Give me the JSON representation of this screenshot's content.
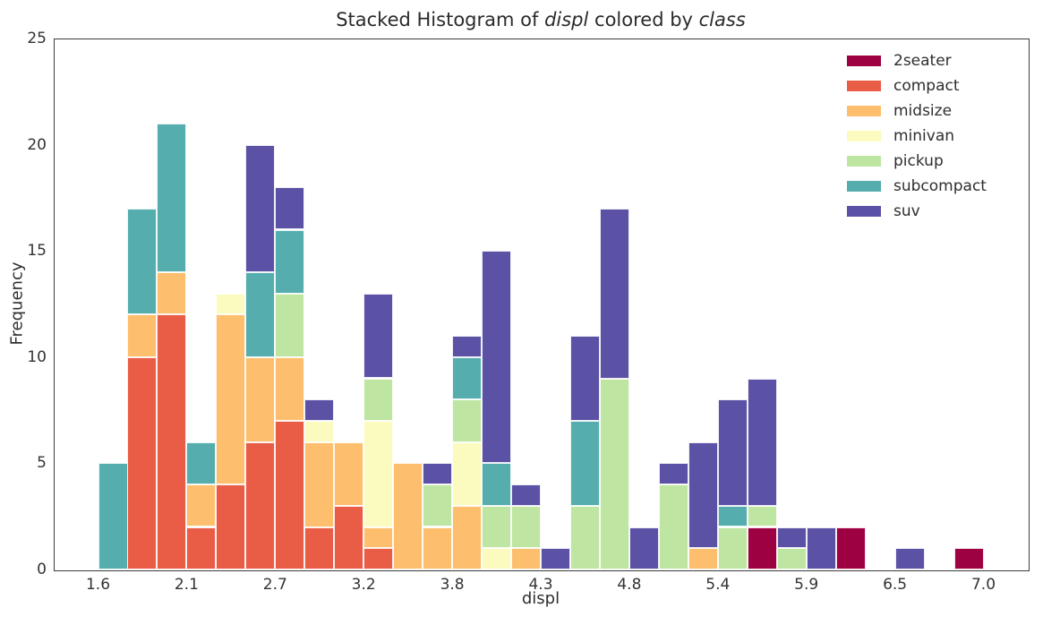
{
  "title": {
    "prefix": "Stacked Histogram of ",
    "var1": "displ",
    "middle": " colored by ",
    "var2": "class"
  },
  "chart_data": {
    "type": "bar",
    "subtype": "stacked-histogram",
    "title": "Stacked Histogram of displ colored by class",
    "xlabel": "displ",
    "ylabel": "Frequency",
    "xlim": [
      1.33,
      7.27
    ],
    "ylim": [
      0,
      25
    ],
    "grid": false,
    "legend_position": "upper right",
    "bin_start": 1.6,
    "bin_width": 0.18,
    "bin_count": 30,
    "x_tick_values": [
      1.6,
      2.14,
      2.68,
      3.22,
      3.76,
      4.3,
      4.84,
      5.38,
      5.92,
      6.46,
      7.0
    ],
    "x_tick_labels": [
      "1.6",
      "2.1",
      "2.7",
      "3.2",
      "3.8",
      "4.3",
      "4.8",
      "5.4",
      "5.9",
      "6.5",
      "7.0"
    ],
    "y_tick_values": [
      0,
      5,
      10,
      15,
      20,
      25
    ],
    "y_tick_labels": [
      "0",
      "5",
      "10",
      "15",
      "20",
      "25"
    ],
    "series": [
      {
        "name": "2seater",
        "color": "#9e0142",
        "values": [
          0,
          0,
          0,
          0,
          0,
          0,
          0,
          0,
          0,
          0,
          0,
          0,
          0,
          0,
          0,
          0,
          0,
          0,
          0,
          0,
          0,
          0,
          2,
          0,
          0,
          2,
          0,
          0,
          0,
          1
        ]
      },
      {
        "name": "compact",
        "color": "#e95d47",
        "values": [
          0,
          10,
          12,
          2,
          4,
          6,
          7,
          2,
          3,
          1,
          0,
          0,
          0,
          0,
          0,
          0,
          0,
          0,
          0,
          0,
          0,
          0,
          0,
          0,
          0,
          0,
          0,
          0,
          0,
          0
        ]
      },
      {
        "name": "midsize",
        "color": "#fdbe6e",
        "values": [
          0,
          2,
          2,
          2,
          8,
          4,
          3,
          4,
          3,
          1,
          5,
          2,
          3,
          0,
          1,
          0,
          0,
          0,
          0,
          0,
          1,
          0,
          0,
          0,
          0,
          0,
          0,
          0,
          0,
          0
        ]
      },
      {
        "name": "minivan",
        "color": "#fbfbbf",
        "values": [
          0,
          0,
          0,
          0,
          1,
          0,
          0,
          1,
          0,
          5,
          0,
          0,
          3,
          1,
          0,
          0,
          0,
          0,
          0,
          0,
          0,
          0,
          0,
          0,
          0,
          0,
          0,
          0,
          0,
          0
        ]
      },
      {
        "name": "pickup",
        "color": "#bee5a2",
        "values": [
          0,
          0,
          0,
          0,
          0,
          0,
          3,
          0,
          0,
          2,
          0,
          2,
          2,
          2,
          2,
          0,
          3,
          9,
          0,
          4,
          0,
          2,
          1,
          1,
          0,
          0,
          0,
          0,
          0,
          0
        ]
      },
      {
        "name": "subcompact",
        "color": "#55aead",
        "values": [
          5,
          5,
          7,
          2,
          0,
          4,
          3,
          0,
          0,
          0,
          0,
          0,
          2,
          2,
          0,
          0,
          4,
          0,
          0,
          0,
          0,
          1,
          0,
          0,
          0,
          0,
          0,
          0,
          0,
          0
        ]
      },
      {
        "name": "suv",
        "color": "#5b52a5",
        "values": [
          0,
          0,
          0,
          0,
          0,
          6,
          2,
          1,
          0,
          4,
          0,
          1,
          1,
          10,
          1,
          1,
          4,
          8,
          2,
          1,
          5,
          5,
          6,
          1,
          2,
          0,
          0,
          1,
          0,
          0
        ]
      }
    ]
  }
}
